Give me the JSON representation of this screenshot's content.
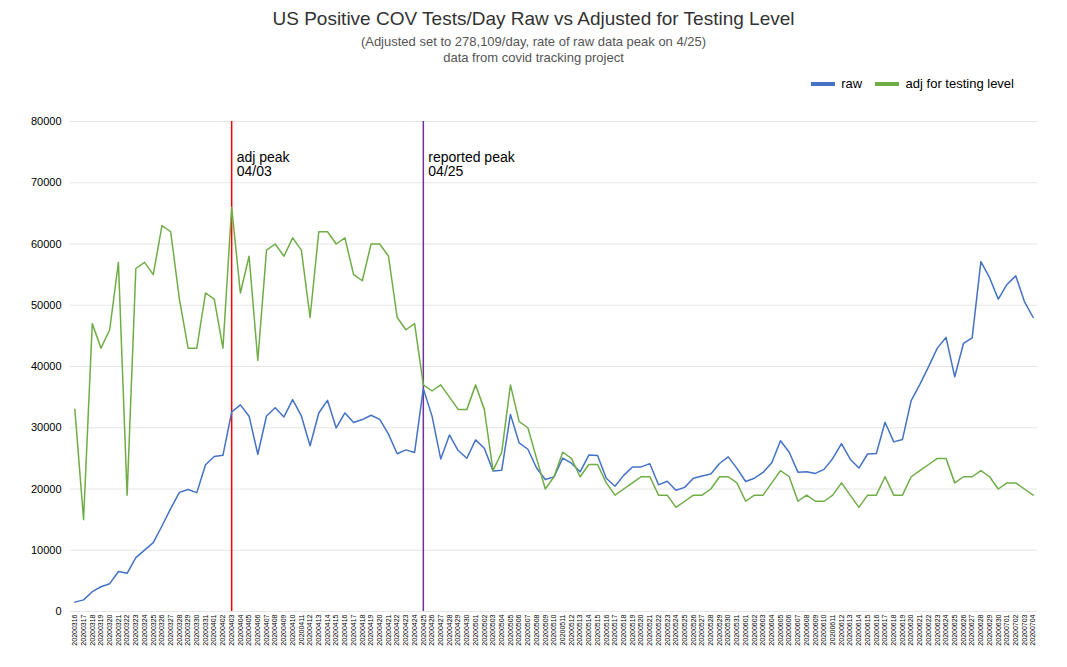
{
  "chart_data": {
    "type": "line",
    "title": "US Positive COV Tests/Day Raw vs Adjusted for Testing Level",
    "subtitle": [
      "(Adjusted set to 278,109/day, rate of raw data peak on 4/25)",
      "data from covid tracking project"
    ],
    "x": [
      "20200316",
      "20200317",
      "20200318",
      "20200319",
      "20200320",
      "20200321",
      "20200322",
      "20200323",
      "20200324",
      "20200325",
      "20200326",
      "20200327",
      "20200328",
      "20200329",
      "20200330",
      "20200331",
      "20200401",
      "20200402",
      "20200403",
      "20200404",
      "20200405",
      "20200406",
      "20200407",
      "20200408",
      "20200409",
      "20200410",
      "20200411",
      "20200412",
      "20200413",
      "20200414",
      "20200415",
      "20200416",
      "20200417",
      "20200418",
      "20200419",
      "20200420",
      "20200421",
      "20200422",
      "20200423",
      "20200424",
      "20200425",
      "20200426",
      "20200427",
      "20200428",
      "20200429",
      "20200430",
      "20200501",
      "20200502",
      "20200503",
      "20200504",
      "20200505",
      "20200506",
      "20200507",
      "20200508",
      "20200509",
      "20200510",
      "20200511",
      "20200512",
      "20200513",
      "20200514",
      "20200515",
      "20200516",
      "20200517",
      "20200518",
      "20200519",
      "20200520",
      "20200521",
      "20200522",
      "20200523",
      "20200524",
      "20200525",
      "20200526",
      "20200527",
      "20200528",
      "20200529",
      "20200530",
      "20200531",
      "20200601",
      "20200602",
      "20200603",
      "20200604",
      "20200605",
      "20200606",
      "20200607",
      "20200608",
      "20200609",
      "20200610",
      "20200611",
      "20200612",
      "20200613",
      "20200614",
      "20200615",
      "20200616",
      "20200617",
      "20200618",
      "20200619",
      "20200620",
      "20200621",
      "20200622",
      "20200623",
      "20200624",
      "20200625",
      "20200626",
      "20200627",
      "20200628",
      "20200629",
      "20200630",
      "20200701",
      "20200702",
      "20200703",
      "20200704"
    ],
    "series": [
      {
        "name": "raw",
        "color": "#4472c4",
        "values": [
          1527,
          1895,
          3235,
          4038,
          4543,
          6535,
          6242,
          8789,
          10014,
          11235,
          13963,
          16797,
          19452,
          19921,
          19408,
          23948,
          25316,
          25497,
          32564,
          33733,
          31888,
          25671,
          31922,
          33264,
          31772,
          34593,
          31924,
          27063,
          32408,
          34475,
          29973,
          32418,
          30844,
          31338,
          32048,
          31369,
          28954,
          25764,
          26386,
          25964,
          36386,
          31897,
          24893,
          28832,
          26280,
          25012,
          28014,
          26654,
          22958,
          23071,
          32182,
          27522,
          26489,
          23429,
          21543,
          21980,
          25038,
          24218,
          22802,
          25533,
          25471,
          21765,
          20459,
          22225,
          23602,
          23609,
          24137,
          20680,
          21263,
          19803,
          20264,
          21768,
          22116,
          22437,
          24162,
          25247,
          23370,
          21219,
          21762,
          22697,
          24277,
          27869,
          26012,
          22754,
          22832,
          22548,
          23204,
          24989,
          27420,
          24873,
          23419,
          25714,
          25800,
          30893,
          27693,
          28093,
          34429,
          37070,
          39972,
          43000,
          44750,
          38320,
          43762,
          44680,
          57116,
          54500,
          51000,
          53400,
          54800,
          50600,
          48000
        ]
      },
      {
        "name": "adj for testing level",
        "color": "#70ad47",
        "values": [
          33000,
          15000,
          47000,
          43000,
          46000,
          57000,
          19000,
          56000,
          57000,
          55000,
          63000,
          62000,
          51000,
          43000,
          43000,
          52000,
          51000,
          43000,
          66000,
          52000,
          58000,
          41000,
          59000,
          60000,
          58000,
          61000,
          59000,
          48000,
          62000,
          62000,
          60000,
          61000,
          55000,
          54000,
          60000,
          60000,
          58000,
          48000,
          46000,
          47000,
          37000,
          36000,
          37000,
          35000,
          33000,
          33000,
          37000,
          33000,
          23000,
          26000,
          37000,
          31000,
          30000,
          25000,
          20000,
          22000,
          26000,
          25000,
          22000,
          24000,
          24000,
          21000,
          19000,
          20000,
          21000,
          22000,
          22000,
          19000,
          19000,
          17000,
          18000,
          19000,
          19000,
          20000,
          22000,
          22000,
          21000,
          18000,
          19000,
          19000,
          21000,
          23000,
          22000,
          18000,
          19000,
          18000,
          18000,
          19000,
          21000,
          19000,
          17000,
          19000,
          19000,
          22000,
          19000,
          19000,
          22000,
          23000,
          24000,
          25000,
          25000,
          21000,
          22000,
          22000,
          23000,
          22000,
          20000,
          21000,
          21000,
          20000,
          19000
        ]
      }
    ],
    "annotations": [
      {
        "x": "20200403",
        "y": 75000,
        "text": "adj peak\n04/03",
        "color": "#ff0000"
      },
      {
        "x": "20200425",
        "y": 75000,
        "text": "reported peak\n04/25",
        "color": "#7030a0"
      }
    ],
    "ylim": [
      0,
      80000
    ],
    "yticks": [
      0,
      10000,
      20000,
      30000,
      40000,
      50000,
      60000,
      70000,
      80000
    ],
    "grid": true,
    "legend": "upper right"
  }
}
